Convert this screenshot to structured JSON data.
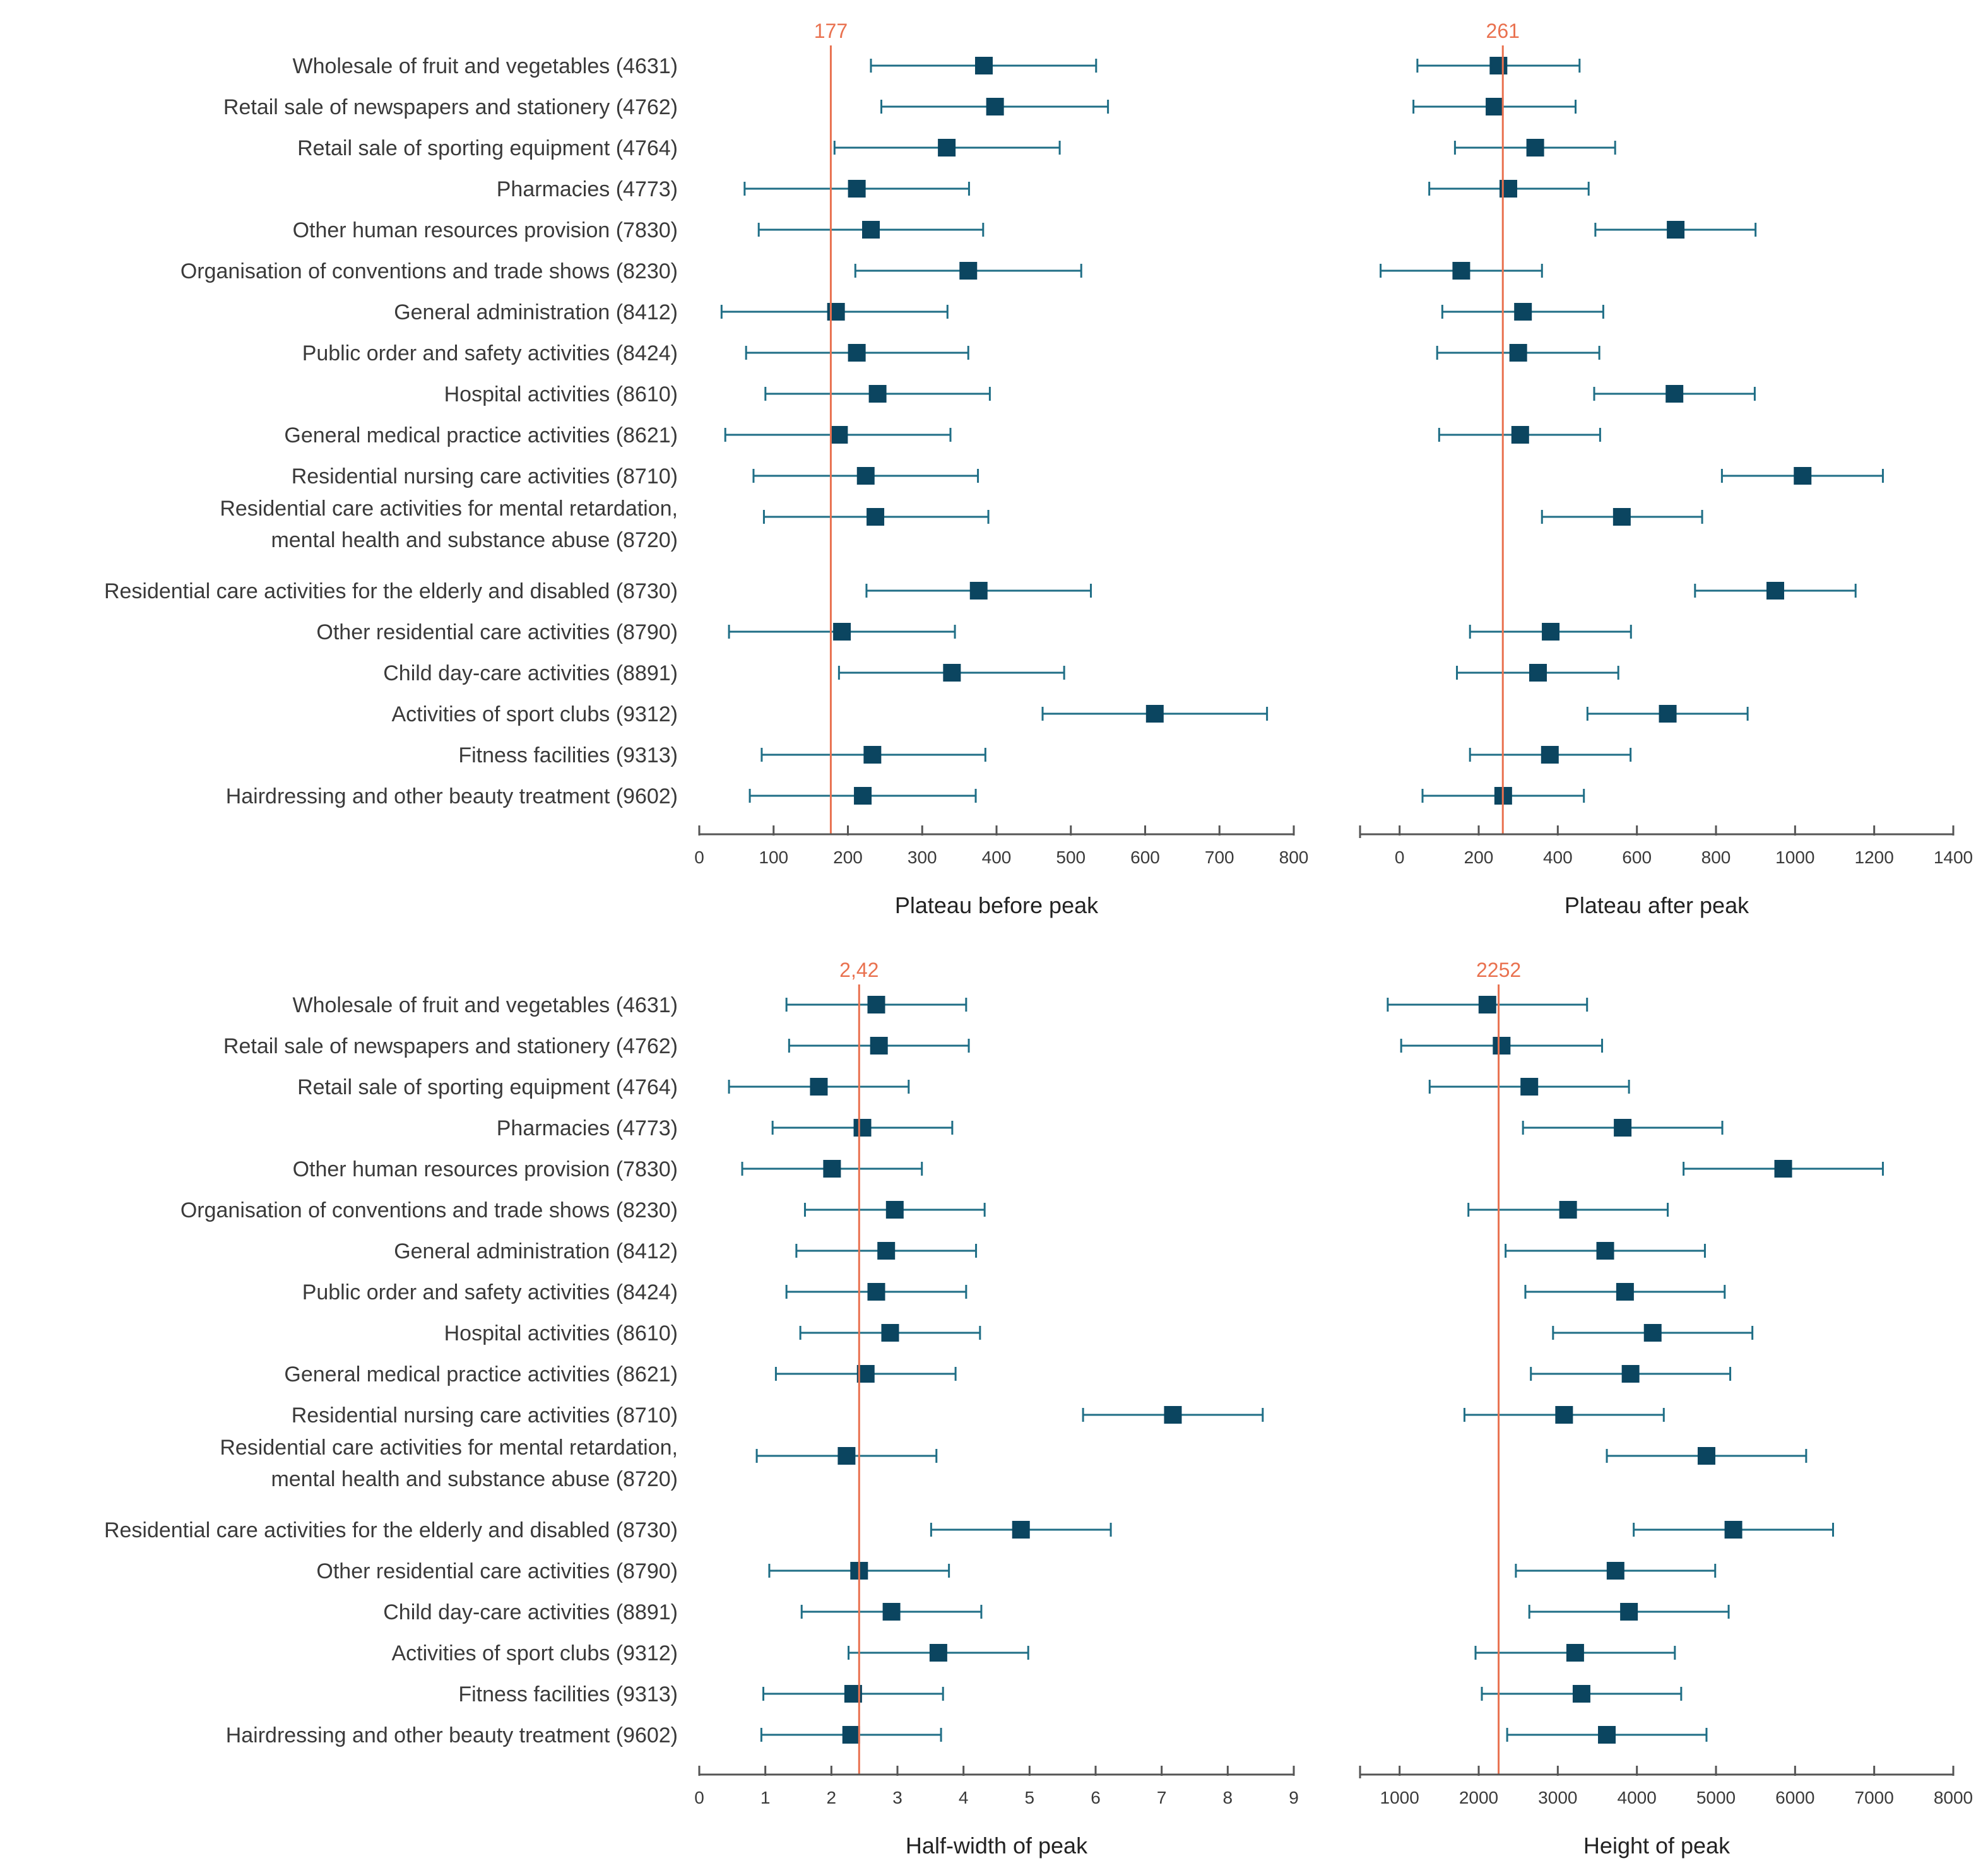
{
  "colors": {
    "marker": "#0b4560",
    "whisker": "#1f6e86",
    "reference": "#e9714f",
    "axis": "#555555",
    "text": "#3a3a3a"
  },
  "categories": [
    [
      "Wholesale of fruit and vegetables (4631)"
    ],
    [
      "Retail sale of newspapers and stationery (4762)"
    ],
    [
      "Retail sale of sporting equipment (4764)"
    ],
    [
      "Pharmacies (4773)"
    ],
    [
      "Other human resources provision (7830)"
    ],
    [
      "Organisation of conventions and trade shows (8230)"
    ],
    [
      "General administration (8412)"
    ],
    [
      "Public order and safety activities (8424)"
    ],
    [
      "Hospital activities (8610)"
    ],
    [
      "General medical practice activities (8621)"
    ],
    [
      "Residential nursing care activities (8710)"
    ],
    [
      "Residential care activities for mental retardation,",
      "mental health and substance abuse (8720)"
    ],
    [
      "Residential care activities for the elderly and disabled (8730)"
    ],
    [
      "Other residential care activities (8790)"
    ],
    [
      "Child day-care activities (8891)"
    ],
    [
      "Activities of sport clubs (9312)"
    ],
    [
      "Fitness facilities (9313)"
    ],
    [
      "Hairdressing and other beauty treatment (9602)"
    ]
  ],
  "chart_data": [
    {
      "type": "forest",
      "xlabel": "Plateau before peak",
      "ticks": [
        0,
        100,
        200,
        300,
        400,
        500,
        600,
        700,
        800
      ],
      "tick_labels": [
        "0",
        "100",
        "200",
        "300",
        "400",
        "500",
        "600",
        "700",
        "800"
      ],
      "xlim": [
        0,
        800
      ],
      "reference": {
        "value": 177,
        "label": "177"
      },
      "estimates": [
        383,
        398,
        333,
        212,
        231,
        362,
        184,
        212,
        240,
        188,
        224,
        237,
        376,
        192,
        340,
        613,
        233,
        220
      ],
      "lower": [
        231,
        245,
        182,
        61,
        80,
        210,
        30,
        63,
        89,
        35,
        73,
        87,
        225,
        40,
        188,
        462,
        84,
        68
      ],
      "upper": [
        534,
        550,
        485,
        363,
        382,
        514,
        334,
        362,
        391,
        338,
        375,
        389,
        527,
        344,
        491,
        764,
        385,
        372
      ]
    },
    {
      "type": "forest",
      "xlabel": "Plateau after peak",
      "ticks": [
        0,
        200,
        400,
        600,
        800,
        1000,
        1200,
        1400
      ],
      "tick_labels": [
        "0",
        "200",
        "400",
        "600",
        "800",
        "1000",
        "1200",
        "1400"
      ],
      "xlim": [
        -100,
        1400
      ],
      "reference": {
        "value": 261,
        "label": "261"
      },
      "estimates": [
        250,
        240,
        343,
        275,
        698,
        156,
        312,
        300,
        695,
        305,
        1019,
        562,
        950,
        382,
        350,
        678,
        380,
        262
      ],
      "lower": [
        45,
        35,
        140,
        75,
        495,
        -48,
        108,
        95,
        492,
        100,
        815,
        360,
        747,
        178,
        145,
        475,
        178,
        58
      ],
      "upper": [
        455,
        445,
        545,
        478,
        900,
        360,
        515,
        505,
        898,
        507,
        1222,
        765,
        1153,
        585,
        553,
        880,
        584,
        466
      ]
    },
    {
      "type": "forest",
      "xlabel": "Half-width of peak",
      "ticks": [
        0,
        1,
        2,
        3,
        4,
        5,
        6,
        7,
        8,
        9
      ],
      "tick_labels": [
        "0",
        "1",
        "2",
        "3",
        "4",
        "5",
        "6",
        "7",
        "8",
        "9"
      ],
      "xlim": [
        0,
        9
      ],
      "reference": {
        "value": 2.42,
        "label": "2,42"
      },
      "estimates": [
        2.68,
        2.72,
        1.81,
        2.47,
        2.01,
        2.96,
        2.83,
        2.68,
        2.89,
        2.52,
        7.17,
        2.23,
        4.87,
        2.42,
        2.91,
        3.62,
        2.33,
        2.3
      ],
      "lower": [
        1.32,
        1.36,
        0.45,
        1.11,
        0.65,
        1.6,
        1.47,
        1.32,
        1.53,
        1.16,
        5.81,
        0.87,
        3.51,
        1.06,
        1.55,
        2.26,
        0.97,
        0.94
      ],
      "upper": [
        4.04,
        4.08,
        3.17,
        3.83,
        3.37,
        4.32,
        4.19,
        4.04,
        4.25,
        3.88,
        8.53,
        3.59,
        6.23,
        3.78,
        4.27,
        4.98,
        3.69,
        3.66
      ]
    },
    {
      "type": "forest",
      "xlabel": "Height of peak",
      "ticks": [
        1000,
        2000,
        3000,
        4000,
        5000,
        6000,
        7000,
        8000
      ],
      "tick_labels": [
        "1000",
        "2000",
        "3000",
        "4000",
        "5000",
        "6000",
        "7000",
        "8000"
      ],
      "xlim": [
        500,
        8000
      ],
      "reference": {
        "value": 2252,
        "label": "2252"
      },
      "estimates": [
        2110,
        2290,
        2640,
        3820,
        5850,
        3130,
        3600,
        3850,
        4200,
        3920,
        3080,
        4880,
        5220,
        3730,
        3900,
        3220,
        3300,
        3620
      ],
      "lower": [
        850,
        1020,
        1380,
        2560,
        4590,
        1870,
        2340,
        2590,
        2940,
        2660,
        1820,
        3620,
        3960,
        2470,
        2640,
        1960,
        2040,
        2360
      ],
      "upper": [
        3370,
        3560,
        3900,
        5080,
        7110,
        4390,
        4860,
        5110,
        5460,
        5180,
        4340,
        6140,
        6480,
        4990,
        5160,
        4480,
        4560,
        4880
      ]
    }
  ]
}
